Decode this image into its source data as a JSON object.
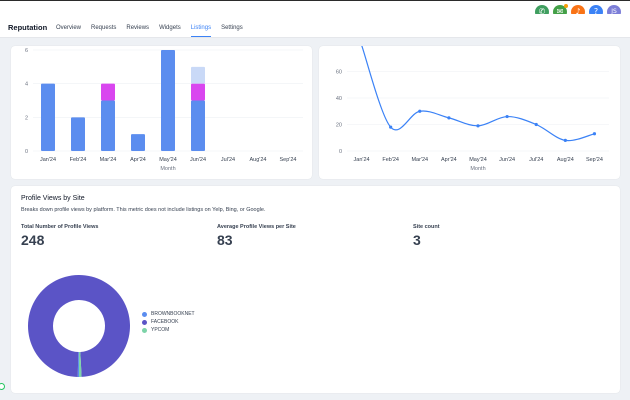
{
  "topbar": {
    "icons": [
      {
        "name": "phone-icon",
        "glyph": "✆",
        "color": "#3f9e5f"
      },
      {
        "name": "megaphone-icon",
        "glyph": "✉",
        "color": "#43a047"
      },
      {
        "name": "bell-icon",
        "glyph": "♪",
        "color": "#f97316"
      },
      {
        "name": "help-icon",
        "glyph": "?",
        "color": "#3b82f6"
      },
      {
        "name": "avatar",
        "glyph": "JS",
        "color": "#7c7ed8"
      }
    ]
  },
  "nav": {
    "title": "Reputation",
    "tabs": [
      "Overview",
      "Requests",
      "Reviews",
      "Widgets",
      "Listings",
      "Settings"
    ],
    "active_tab": "Listings"
  },
  "chart_data": [
    {
      "type": "bar",
      "stacked": true,
      "categories": [
        "Jan'24",
        "Feb'24",
        "Mar'24",
        "Apr'24",
        "May'24",
        "Jun'24",
        "Jul'24",
        "Aug'24",
        "Sep'24"
      ],
      "series": [
        {
          "values": [
            4,
            2,
            3,
            1,
            6,
            3,
            0,
            0,
            0
          ],
          "color": "#5b8def"
        },
        {
          "values": [
            0,
            0,
            1,
            0,
            0,
            1,
            0,
            0,
            0
          ],
          "color": "#d946ef"
        },
        {
          "values": [
            0,
            0,
            0,
            0,
            0,
            1,
            0,
            0,
            0
          ],
          "color": "#c9d9f7"
        }
      ],
      "yticks": [
        0,
        2,
        4,
        6
      ],
      "ylim": [
        0,
        6
      ],
      "xlabel": "Month"
    },
    {
      "type": "line",
      "x": [
        "Jan'24",
        "Feb'24",
        "Mar'24",
        "Apr'24",
        "May'24",
        "Jun'24",
        "Jul'24",
        "Aug'24",
        "Sep'24"
      ],
      "series": [
        {
          "values": [
            80,
            18,
            30,
            25,
            19,
            26,
            20,
            8,
            13
          ],
          "color": "#3b82f6"
        }
      ],
      "yticks": [
        0,
        20,
        40,
        60
      ],
      "ylim": [
        0,
        80
      ],
      "xlabel": "Month"
    }
  ],
  "views": {
    "title": "Profile Views by Site",
    "description": "Breaks down profile views by platform. This metric does not include listings on Yelp, Bing, or Google.",
    "stats": [
      {
        "label": "Total Number of Profile Views",
        "value": "248"
      },
      {
        "label": "Average Profile Views per Site",
        "value": "83"
      },
      {
        "label": "Site count",
        "value": "3"
      }
    ],
    "legend": [
      {
        "label": "BROWNBOOKNET",
        "color": "#5b8def"
      },
      {
        "label": "FACEBOOK",
        "color": "#5b54c6"
      },
      {
        "label": "YPCOM",
        "color": "#7dd3a8"
      }
    ],
    "donut_values": [
      1,
      245,
      2
    ]
  }
}
